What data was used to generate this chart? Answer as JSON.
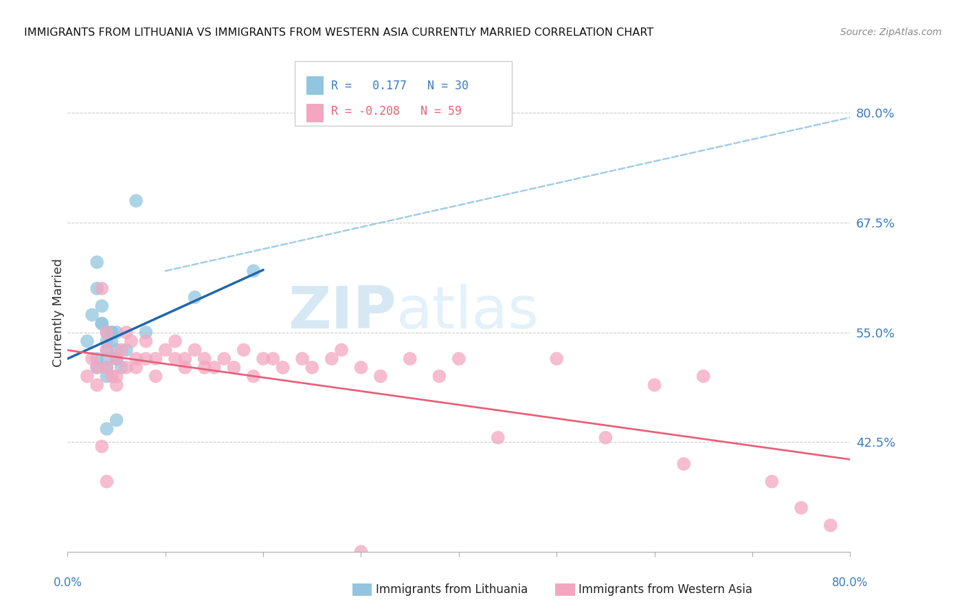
{
  "title": "IMMIGRANTS FROM LITHUANIA VS IMMIGRANTS FROM WESTERN ASIA CURRENTLY MARRIED CORRELATION CHART",
  "source": "Source: ZipAtlas.com",
  "ylabel": "Currently Married",
  "xlim": [
    0.0,
    0.8
  ],
  "ylim": [
    0.3,
    0.845
  ],
  "yticks": [
    0.425,
    0.55,
    0.675,
    0.8
  ],
  "ytick_labels": [
    "42.5%",
    "55.0%",
    "67.5%",
    "80.0%"
  ],
  "blue_color": "#92c5de",
  "pink_color": "#f4a6c0",
  "blue_line_color": "#2166ac",
  "pink_line_color": "#e8607a",
  "dashed_line_color": "#92c5de",
  "watermark_zip": "ZIP",
  "watermark_atlas": "atlas",
  "blue_scatter_x": [
    0.02,
    0.025,
    0.03,
    0.03,
    0.035,
    0.035,
    0.04,
    0.04,
    0.04,
    0.04,
    0.045,
    0.045,
    0.05,
    0.05,
    0.05,
    0.03,
    0.03,
    0.035,
    0.04,
    0.04,
    0.045,
    0.05,
    0.055,
    0.06,
    0.07,
    0.08,
    0.13,
    0.19,
    0.04,
    0.05
  ],
  "blue_scatter_y": [
    0.54,
    0.57,
    0.6,
    0.63,
    0.56,
    0.58,
    0.55,
    0.54,
    0.52,
    0.53,
    0.55,
    0.54,
    0.55,
    0.53,
    0.52,
    0.52,
    0.51,
    0.56,
    0.51,
    0.5,
    0.55,
    0.52,
    0.51,
    0.53,
    0.7,
    0.55,
    0.59,
    0.62,
    0.44,
    0.45
  ],
  "pink_scatter_x": [
    0.02,
    0.025,
    0.03,
    0.03,
    0.035,
    0.04,
    0.04,
    0.04,
    0.045,
    0.05,
    0.05,
    0.05,
    0.055,
    0.06,
    0.06,
    0.065,
    0.07,
    0.07,
    0.08,
    0.08,
    0.09,
    0.09,
    0.1,
    0.11,
    0.11,
    0.12,
    0.12,
    0.13,
    0.14,
    0.14,
    0.15,
    0.16,
    0.17,
    0.18,
    0.19,
    0.2,
    0.21,
    0.22,
    0.24,
    0.25,
    0.27,
    0.28,
    0.3,
    0.32,
    0.35,
    0.38,
    0.4,
    0.44,
    0.5,
    0.55,
    0.6,
    0.63,
    0.65,
    0.72,
    0.75,
    0.78,
    0.035,
    0.04,
    0.3
  ],
  "pink_scatter_y": [
    0.5,
    0.52,
    0.49,
    0.51,
    0.6,
    0.53,
    0.55,
    0.51,
    0.5,
    0.52,
    0.5,
    0.49,
    0.53,
    0.55,
    0.51,
    0.54,
    0.52,
    0.51,
    0.54,
    0.52,
    0.52,
    0.5,
    0.53,
    0.52,
    0.54,
    0.52,
    0.51,
    0.53,
    0.52,
    0.51,
    0.51,
    0.52,
    0.51,
    0.53,
    0.5,
    0.52,
    0.52,
    0.51,
    0.52,
    0.51,
    0.52,
    0.53,
    0.51,
    0.5,
    0.52,
    0.5,
    0.52,
    0.43,
    0.52,
    0.43,
    0.49,
    0.4,
    0.5,
    0.38,
    0.35,
    0.33,
    0.42,
    0.38,
    0.3
  ],
  "blue_line_x": [
    0.0,
    0.2
  ],
  "blue_line_y_start": 0.525,
  "blue_line_y_end": 0.565,
  "pink_line_x": [
    0.0,
    0.8
  ],
  "pink_line_y_start": 0.525,
  "pink_line_y_end": 0.425,
  "dash_line_x": [
    0.1,
    0.8
  ],
  "dash_line_y_start": 0.62,
  "dash_line_y_end": 0.795
}
